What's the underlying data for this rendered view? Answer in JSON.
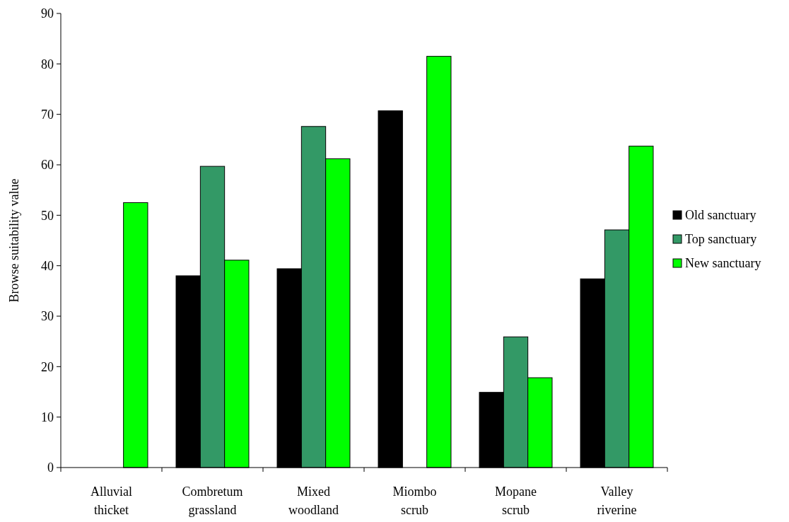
{
  "chart_data": {
    "type": "bar",
    "ylabel": "Browse suitability value",
    "categories": [
      "Alluvial thicket",
      "Combretum grassland",
      "Mixed woodland",
      "Miombo scrub",
      "Mopane scrub",
      "Valley riverine"
    ],
    "series": [
      {
        "name": "Old sanctuary",
        "color": "#000000",
        "values": [
          null,
          38.0,
          39.4,
          70.7,
          14.9,
          37.4
        ]
      },
      {
        "name": "Top sanctuary",
        "color": "#339966",
        "values": [
          null,
          59.7,
          67.6,
          null,
          25.9,
          47.1
        ]
      },
      {
        "name": "New sanctuary",
        "color": "#00ff00",
        "values": [
          52.5,
          41.1,
          61.2,
          81.5,
          17.8,
          63.7
        ]
      }
    ],
    "ylim": [
      0,
      90
    ],
    "yticks": [
      0,
      10,
      20,
      30,
      40,
      50,
      60,
      70,
      80,
      90
    ],
    "legend": "right"
  }
}
